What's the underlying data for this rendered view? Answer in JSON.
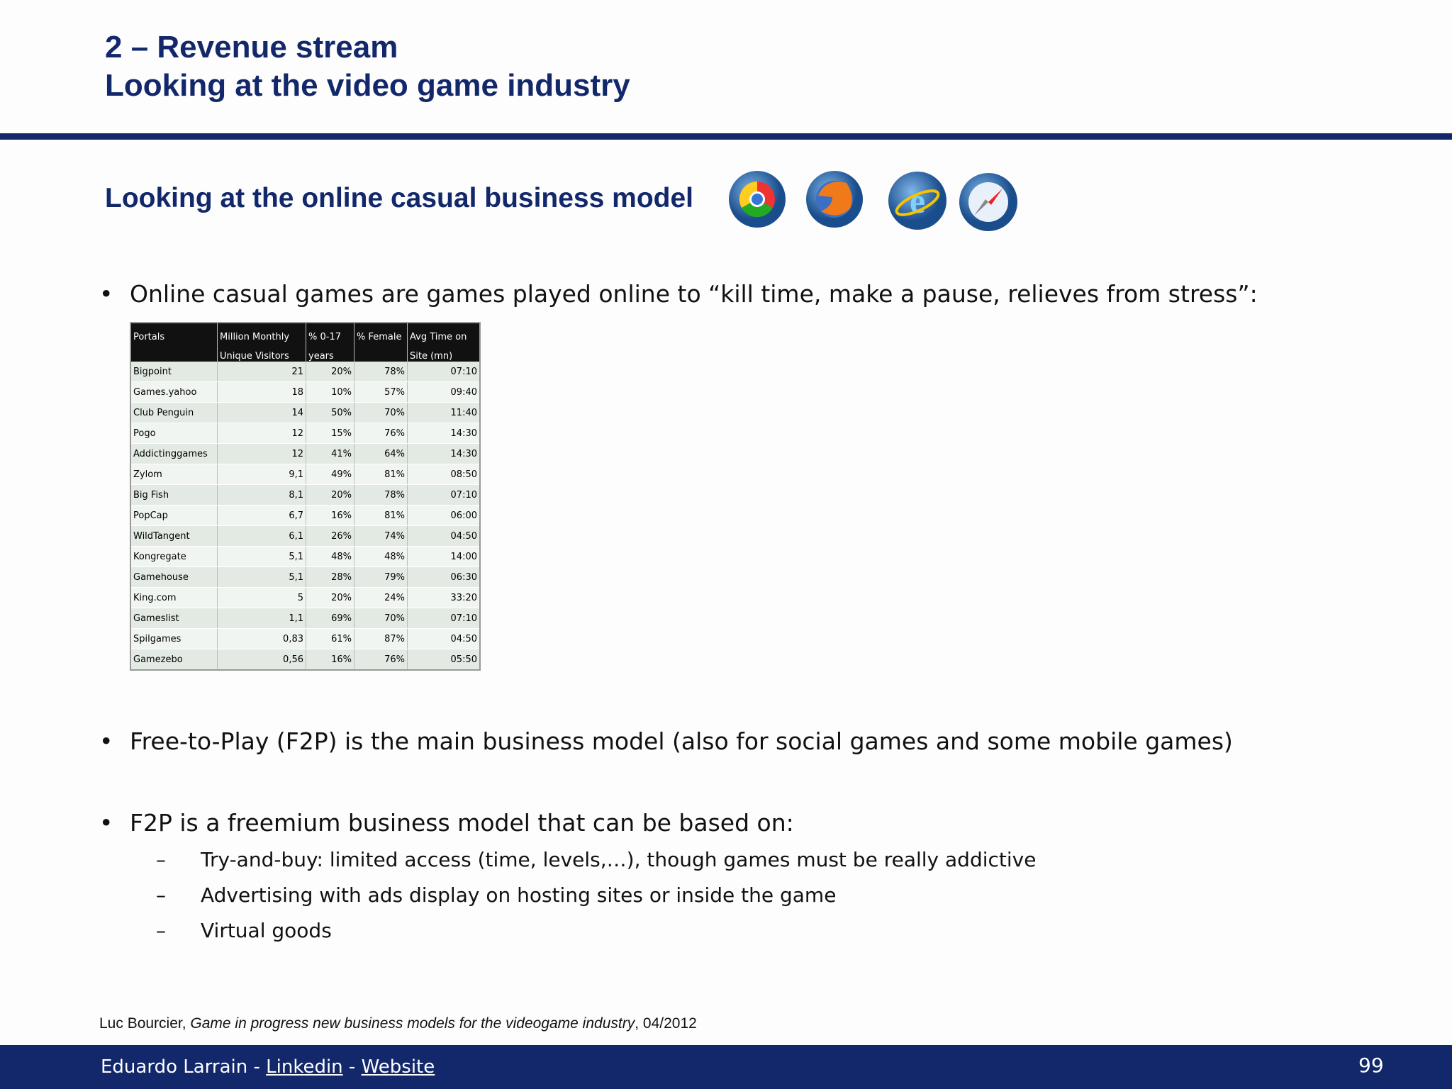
{
  "header": {
    "title_lines": [
      "2 – Revenue stream",
      "Looking at the video game industry"
    ]
  },
  "subtitle": "Looking at the online casual business model",
  "bullets": [
    {
      "text": "Online casual games are games played online to “kill time, make a pause, relieves from stress”:"
    },
    {
      "text": "Free-to-Play (F2P) is the main business model (also for social games and some mobile games)"
    },
    {
      "text": "F2P is a freemium business model that can be based on:",
      "sub": [
        "Try-and-buy: limited access (time, levels,…), though games must be really addictive",
        "Advertising with ads display on hosting sites or inside the game",
        "Virtual goods"
      ]
    }
  ],
  "table": {
    "columns": [
      [
        "Portals"
      ],
      [
        "Million Monthly",
        "Unique Visitors"
      ],
      [
        "% 0-17",
        "years"
      ],
      [
        "% Female"
      ],
      [
        "Avg Time on",
        "Site (mn)"
      ]
    ],
    "rows": [
      [
        "Bigpoint",
        "21",
        "20%",
        "78%",
        "07:10"
      ],
      [
        "Games.yahoo",
        "18",
        "10%",
        "57%",
        "09:40"
      ],
      [
        "Club Penguin",
        "14",
        "50%",
        "70%",
        "11:40"
      ],
      [
        "Pogo",
        "12",
        "15%",
        "76%",
        "14:30"
      ],
      [
        "Addictinggames",
        "12",
        "41%",
        "64%",
        "14:30"
      ],
      [
        "Zylom",
        "9,1",
        "49%",
        "81%",
        "08:50"
      ],
      [
        "Big Fish",
        "8,1",
        "20%",
        "78%",
        "07:10"
      ],
      [
        "PopCap",
        "6,7",
        "16%",
        "81%",
        "06:00"
      ],
      [
        "WildTangent",
        "6,1",
        "26%",
        "74%",
        "04:50"
      ],
      [
        "Kongregate",
        "5,1",
        "48%",
        "48%",
        "14:00"
      ],
      [
        "Gamehouse",
        "5,1",
        "28%",
        "79%",
        "06:30"
      ],
      [
        "King.com",
        "5",
        "20%",
        "24%",
        "33:20"
      ],
      [
        "Gameslist",
        "1,1",
        "69%",
        "70%",
        "07:10"
      ],
      [
        "Spilgames",
        "0,83",
        "61%",
        "87%",
        "04:50"
      ],
      [
        "Gamezebo",
        "0,56",
        "16%",
        "76%",
        "05:50"
      ]
    ]
  },
  "citation": {
    "author": "Luc Bourcier, ",
    "title": "Game in progress new business models for the videogame industry",
    "date": ", 04/2012"
  },
  "footer": {
    "author": "Eduardo Larrain - ",
    "link1": "Linkedin",
    "separator": " - ",
    "link2": "Website",
    "page": "99"
  }
}
